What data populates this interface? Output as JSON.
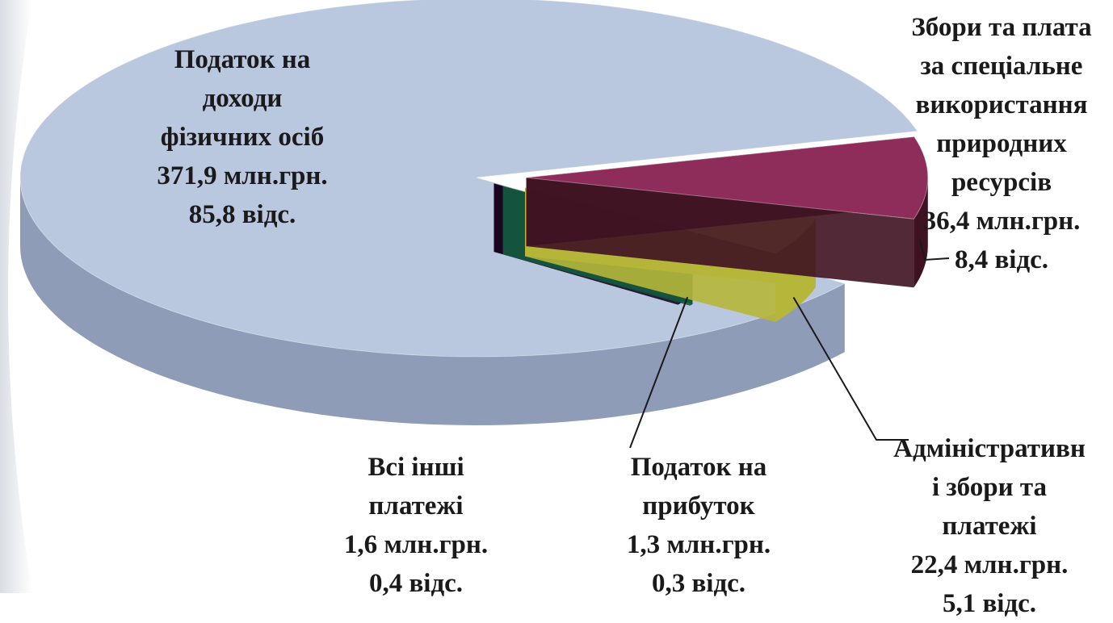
{
  "chart_data": {
    "type": "pie",
    "title": "",
    "slices": [
      {
        "key": "pdfo",
        "label_lines": [
          "Податок на",
          "доходи",
          "фізичних осіб"
        ],
        "value": 371.9,
        "amount_label": "371,9 млн.грн.",
        "percent": 85.8,
        "percent_label": "85,8 відс.",
        "color_top": "#b9c7df",
        "color_side": "#8e9cb8"
      },
      {
        "key": "nature",
        "label_lines": [
          "Збори та плата",
          "за спеціальне",
          "використання",
          "природних",
          "ресурсів"
        ],
        "value": 36.4,
        "amount_label": "36,4 млн.грн.",
        "percent": 8.4,
        "percent_label": "8,4 відс.",
        "color_top": "#8e2d5a",
        "color_side": "#3e1221"
      },
      {
        "key": "admin",
        "label_lines": [
          "Адміністративн",
          "і збори та",
          "платежі"
        ],
        "value": 22.4,
        "amount_label": "22,4 млн.грн.",
        "percent": 5.1,
        "percent_label": "5,1 відс.",
        "color_top": "#ffff66",
        "color_side": "#b6b63a"
      },
      {
        "key": "profit",
        "label_lines": [
          "Податок на",
          "прибуток"
        ],
        "value": 1.3,
        "amount_label": "1,3 млн.грн.",
        "percent": 0.3,
        "percent_label": "0,3 відс.",
        "color_top": "#2b8a6a",
        "color_side": "#14553f"
      },
      {
        "key": "other",
        "label_lines": [
          "Всі інші",
          "платежі"
        ],
        "value": 1.6,
        "amount_label": "1,6 млн.грн.",
        "percent": 0.4,
        "percent_label": "0,4 відс.",
        "color_top": "#2a0830",
        "color_side": "#1a0420"
      }
    ],
    "style": "3d-exploded",
    "legend": "none"
  }
}
